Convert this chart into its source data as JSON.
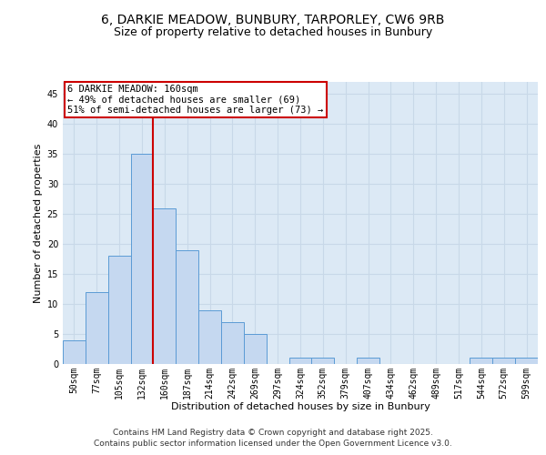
{
  "title_line1": "6, DARKIE MEADOW, BUNBURY, TARPORLEY, CW6 9RB",
  "title_line2": "Size of property relative to detached houses in Bunbury",
  "xlabel": "Distribution of detached houses by size in Bunbury",
  "ylabel": "Number of detached properties",
  "categories": [
    "50sqm",
    "77sqm",
    "105sqm",
    "132sqm",
    "160sqm",
    "187sqm",
    "214sqm",
    "242sqm",
    "269sqm",
    "297sqm",
    "324sqm",
    "352sqm",
    "379sqm",
    "407sqm",
    "434sqm",
    "462sqm",
    "489sqm",
    "517sqm",
    "544sqm",
    "572sqm",
    "599sqm"
  ],
  "values": [
    4,
    12,
    18,
    35,
    26,
    19,
    9,
    7,
    5,
    0,
    1,
    1,
    0,
    1,
    0,
    0,
    0,
    0,
    1,
    1,
    1
  ],
  "bar_color": "#c5d8f0",
  "bar_edge_color": "#5b9bd5",
  "grid_color": "#c8d8e8",
  "background_color": "#dce9f5",
  "property_line_index": 4,
  "annotation_text": "6 DARKIE MEADOW: 160sqm\n← 49% of detached houses are smaller (69)\n51% of semi-detached houses are larger (73) →",
  "annotation_box_color": "#ffffff",
  "annotation_box_edge": "#cc0000",
  "vline_color": "#cc0000",
  "footer_line1": "Contains HM Land Registry data © Crown copyright and database right 2025.",
  "footer_line2": "Contains public sector information licensed under the Open Government Licence v3.0.",
  "ylim": [
    0,
    47
  ],
  "yticks": [
    0,
    5,
    10,
    15,
    20,
    25,
    30,
    35,
    40,
    45
  ],
  "title_fontsize": 10,
  "subtitle_fontsize": 9,
  "axis_label_fontsize": 8,
  "tick_fontsize": 7,
  "footer_fontsize": 6.5,
  "annotation_fontsize": 7.5
}
